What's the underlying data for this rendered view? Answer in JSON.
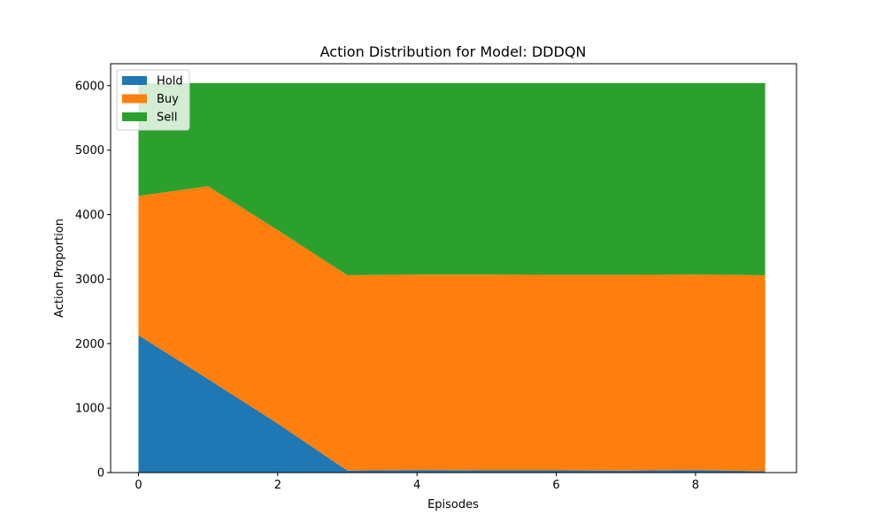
{
  "chart_data": {
    "type": "area",
    "stacked": true,
    "title": "Action Distribution for Model: DDDQN",
    "xlabel": "Episodes",
    "ylabel": "Action Proportion",
    "x": [
      0,
      1,
      2,
      3,
      4,
      5,
      6,
      7,
      8,
      9
    ],
    "xlim": [
      -0.4,
      9.45
    ],
    "ylim": [
      0,
      6340
    ],
    "xticks": [
      0,
      2,
      4,
      6,
      8
    ],
    "yticks": [
      0,
      1000,
      2000,
      3000,
      4000,
      5000,
      6000
    ],
    "grid": false,
    "legend_position": "upper-left",
    "series": [
      {
        "name": "Hold",
        "color": "#1f77b4",
        "values": [
          2130,
          1450,
          760,
          30,
          40,
          35,
          35,
          30,
          40,
          20
        ]
      },
      {
        "name": "Buy",
        "color": "#ff7f0e",
        "values": [
          2160,
          2990,
          3000,
          3030,
          3030,
          3035,
          3030,
          3035,
          3030,
          3040
        ]
      },
      {
        "name": "Sell",
        "color": "#2ca02c",
        "values": [
          1750,
          1600,
          2280,
          2980,
          2970,
          2970,
          2975,
          2975,
          2970,
          2980
        ]
      }
    ]
  }
}
